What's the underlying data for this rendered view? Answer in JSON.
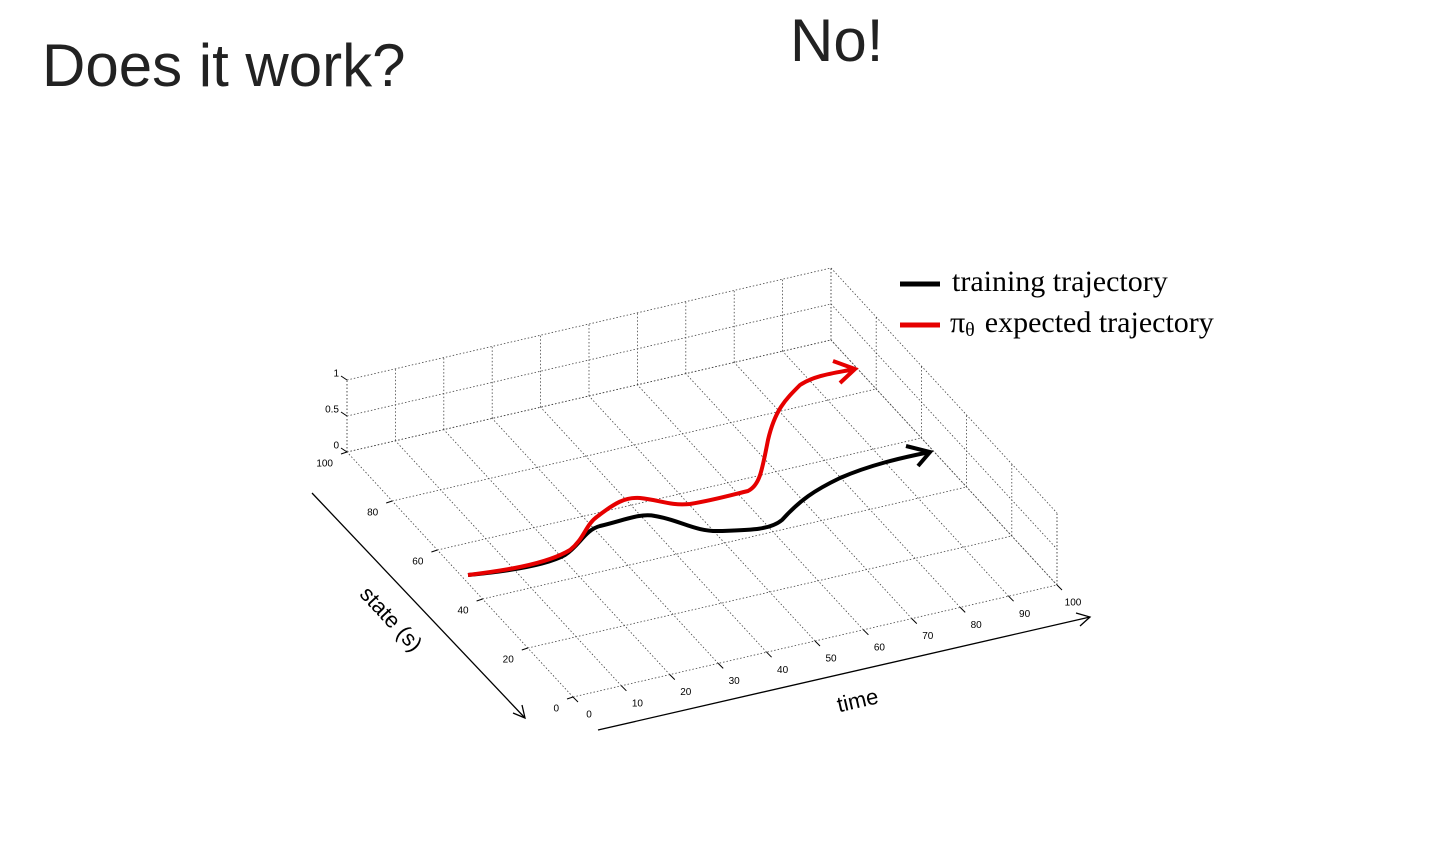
{
  "header": {
    "title": "Does it work?",
    "answer": "No!"
  },
  "plot": {
    "legend": [
      {
        "text": "training trajectory"
      },
      {
        "symbol": "π",
        "subscript": "θ",
        "text": "expected trajectory"
      }
    ],
    "x_label": "time",
    "y_label": "state (s)",
    "x_ticks": [
      "0",
      "10",
      "20",
      "30",
      "40",
      "50",
      "60",
      "70",
      "80",
      "90",
      "100"
    ],
    "y_ticks": [
      "0",
      "20",
      "40",
      "60",
      "80",
      "100"
    ],
    "z_ticks": [
      "0",
      "0.5",
      "1"
    ]
  }
}
